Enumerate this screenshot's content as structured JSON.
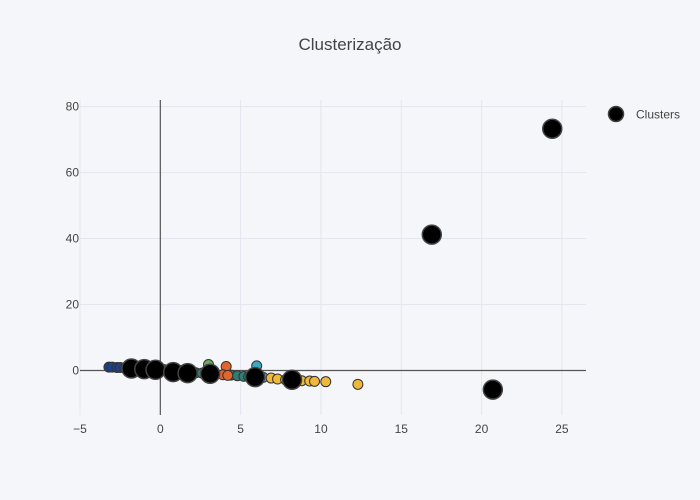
{
  "chart_data": {
    "type": "scatter",
    "title": "Clusterização",
    "xlabel": "",
    "ylabel": "",
    "xlim": [
      -5,
      26.5
    ],
    "ylim": [
      -13.5,
      82
    ],
    "xticks": [
      -5,
      0,
      5,
      10,
      15,
      20,
      25
    ],
    "yticks": [
      0,
      20,
      40,
      60,
      80
    ],
    "grid": true,
    "legend_position": "top-right",
    "background_color": "#f5f6f9",
    "point_groups": [
      {
        "name": "",
        "color": "#1f3f87",
        "points": [
          [
            -3.2,
            1.0
          ],
          [
            -3.0,
            1.0
          ],
          [
            -2.7,
            0.9
          ],
          [
            -2.5,
            0.9
          ],
          [
            -2.2,
            0.8
          ],
          [
            -2.0,
            0.7
          ],
          [
            -1.6,
            0.6
          ],
          [
            -1.3,
            0.5
          ],
          [
            -0.9,
            0.5
          ],
          [
            -0.5,
            0.4
          ],
          [
            -0.2,
            0.3
          ],
          [
            0.2,
            0.3
          ],
          [
            0.6,
            0.2
          ],
          [
            1.0,
            0.1
          ],
          [
            1.3,
            0.0
          ]
        ]
      },
      {
        "name": "",
        "color": "#2f7d73",
        "points": [
          [
            1.8,
            -0.5
          ],
          [
            2.2,
            -0.7
          ],
          [
            2.6,
            -0.8
          ],
          [
            3.4,
            -1.0
          ],
          [
            4.4,
            -1.4
          ],
          [
            4.8,
            -1.6
          ],
          [
            5.2,
            -1.8
          ],
          [
            5.5,
            -1.9
          ]
        ]
      },
      {
        "name": "",
        "color": "#6aa85e",
        "points": [
          [
            3.0,
            1.8
          ]
        ]
      },
      {
        "name": "",
        "color": "#e0662e",
        "points": [
          [
            4.1,
            1.2
          ],
          [
            3.9,
            -1.3
          ],
          [
            4.2,
            -1.5
          ]
        ]
      },
      {
        "name": "",
        "color": "#3fa6bf",
        "points": [
          [
            6.0,
            1.4
          ],
          [
            5.8,
            -1.7
          ],
          [
            6.4,
            -2.1
          ]
        ]
      },
      {
        "name": "",
        "color": "#f0b83a",
        "points": [
          [
            6.9,
            -2.3
          ],
          [
            7.3,
            -2.6
          ],
          [
            7.8,
            -2.8
          ],
          [
            8.3,
            -3.0
          ],
          [
            8.8,
            -3.1
          ],
          [
            9.3,
            -3.2
          ],
          [
            9.6,
            -3.3
          ],
          [
            10.3,
            -3.4
          ],
          [
            12.3,
            -4.2
          ]
        ]
      }
    ],
    "series": [
      {
        "name": "Clusters",
        "color": "#000000",
        "x": [
          -1.8,
          -1.0,
          -0.3,
          0.8,
          1.7,
          3.1,
          5.9,
          8.2,
          16.9,
          20.7,
          24.4
        ],
        "y": [
          0.6,
          0.4,
          0.2,
          -0.5,
          -0.8,
          -1.0,
          -2.0,
          -2.8,
          41.2,
          -5.8,
          73.3
        ]
      }
    ]
  }
}
